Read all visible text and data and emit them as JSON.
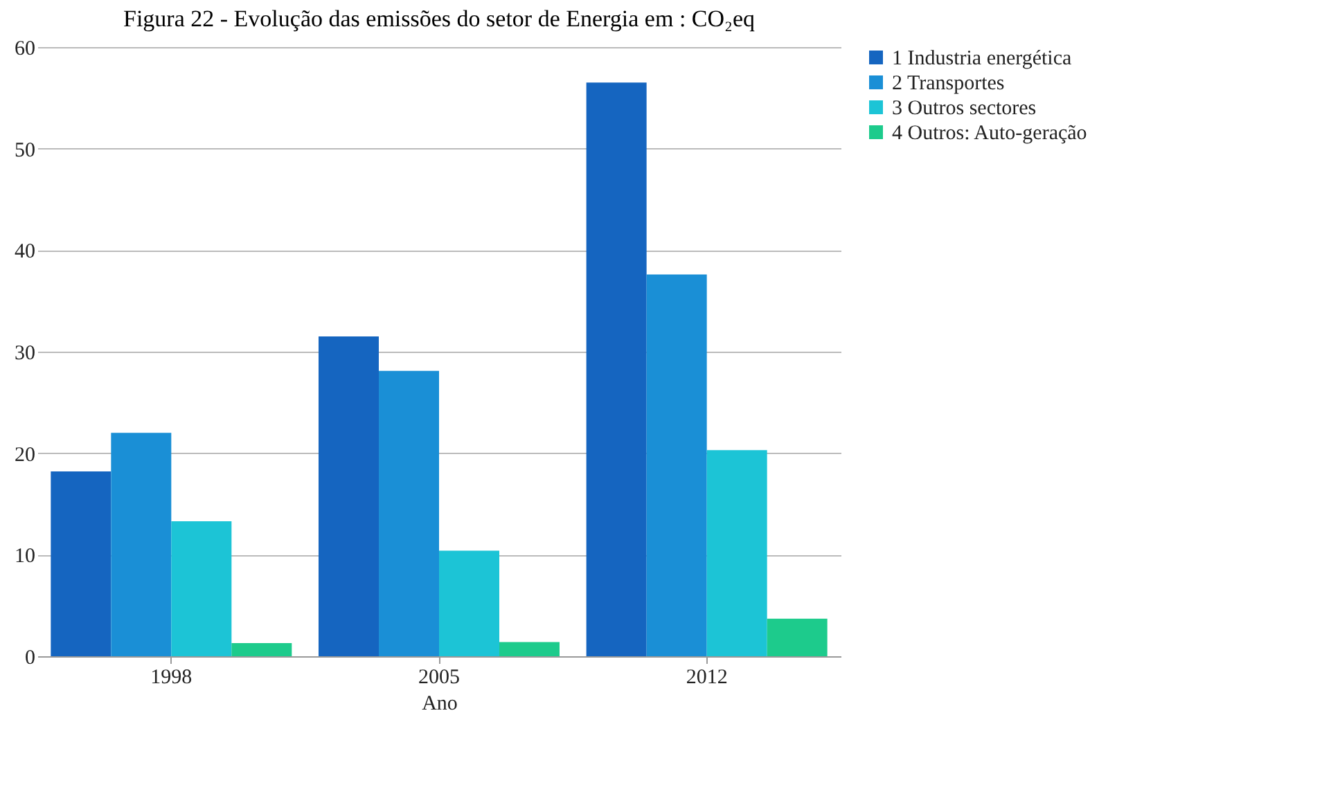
{
  "chart_data": {
    "type": "bar",
    "title": "Figura 22 - Evolução das emissões do setor de Energia em : CO₂eq",
    "xlabel": "Ano",
    "categories": [
      "1998",
      "2005",
      "2012"
    ],
    "series": [
      {
        "name": "1 Industria energética",
        "color": "#1565c0",
        "values": [
          18.2,
          31.5,
          56.5
        ]
      },
      {
        "name": "2 Transportes",
        "color": "#1a8fd6",
        "values": [
          22,
          28.1,
          37.6
        ]
      },
      {
        "name": "3 Outros sectores",
        "color": "#1cc4d6",
        "values": [
          13.3,
          10.4,
          20.3
        ]
      },
      {
        "name": "4 Outros: Auto-geração",
        "color": "#1dcb8c",
        "values": [
          1.3,
          1.4,
          3.7
        ]
      }
    ],
    "ylim": [
      0,
      60
    ],
    "yticks": [
      0,
      10,
      20,
      30,
      40,
      50,
      60
    ],
    "grid": "y",
    "legend": "right"
  }
}
